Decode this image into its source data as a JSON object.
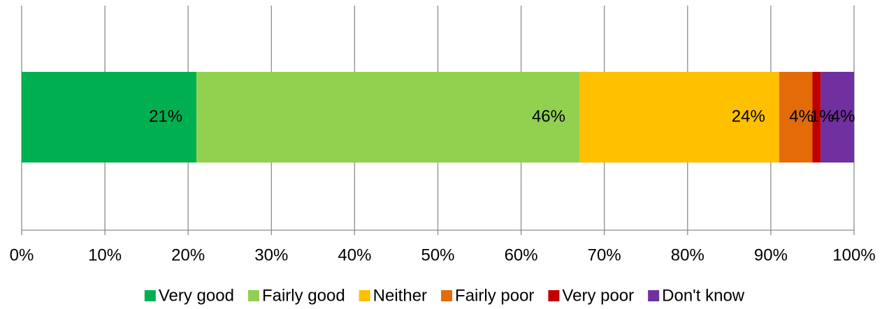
{
  "chart_data": {
    "type": "stacked-bar-horizontal",
    "series": [
      {
        "name": "Very good",
        "color": "#00b050",
        "values": [
          21
        ],
        "value_labels": [
          "21%"
        ]
      },
      {
        "name": "Fairly good",
        "color": "#92d050",
        "values": [
          46
        ],
        "value_labels": [
          "46%"
        ]
      },
      {
        "name": "Neither",
        "color": "#ffc000",
        "values": [
          24
        ],
        "value_labels": [
          "24%"
        ]
      },
      {
        "name": "Fairly poor",
        "color": "#e36c09",
        "values": [
          4
        ],
        "value_labels": [
          "4%"
        ]
      },
      {
        "name": "Very poor",
        "color": "#c00000",
        "values": [
          1
        ],
        "value_labels": [
          "1%"
        ]
      },
      {
        "name": "Don't know",
        "color": "#7030a0",
        "values": [
          4
        ],
        "value_labels": [
          "4%"
        ]
      }
    ],
    "xlim": [
      0,
      100
    ],
    "xticks": [
      {
        "value": 0,
        "label": "0%"
      },
      {
        "value": 10,
        "label": "10%"
      },
      {
        "value": 20,
        "label": "20%"
      },
      {
        "value": 30,
        "label": "30%"
      },
      {
        "value": 40,
        "label": "40%"
      },
      {
        "value": 50,
        "label": "50%"
      },
      {
        "value": 60,
        "label": "60%"
      },
      {
        "value": 70,
        "label": "70%"
      },
      {
        "value": 80,
        "label": "80%"
      },
      {
        "value": 90,
        "label": "90%"
      },
      {
        "value": 100,
        "label": "100%"
      }
    ],
    "grid": true,
    "legend": "bottom"
  }
}
